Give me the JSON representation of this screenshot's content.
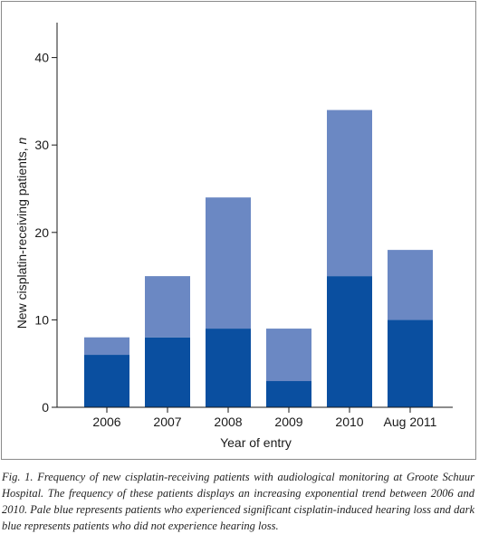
{
  "chart_data": {
    "type": "bar",
    "stacked": true,
    "categories": [
      "2006",
      "2007",
      "2008",
      "2009",
      "2010",
      "Aug 2011"
    ],
    "series": [
      {
        "name": "",
        "color": "#0a4fa0",
        "values": [
          6,
          8,
          9,
          3,
          15,
          10
        ]
      },
      {
        "name": "",
        "color": "#6b88c3",
        "values": [
          2,
          7,
          15,
          6,
          19,
          8
        ]
      }
    ],
    "xlabel": "Year of entry",
    "ylabel": "New cisplatin-receiving patients, ",
    "ylabel_italic": "n",
    "yticks": [
      0,
      10,
      20,
      30,
      40
    ],
    "ylim": [
      0,
      44
    ],
    "grid": false,
    "legend": "none"
  },
  "caption": "Fig. 1. Frequency of new cisplatin-receiving patients with audiological monitoring at Groote Schuur Hospital. The frequency of these patients displays an increasing exponential trend between 2006 and 2010. Pale blue represents patients who experienced significant cisplatin-induced hearing loss and dark blue represents patients who did not experience hearing loss."
}
